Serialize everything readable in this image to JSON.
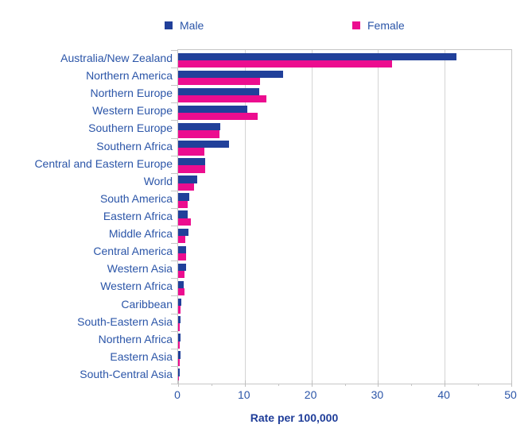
{
  "colors": {
    "male_bar": "#21409a",
    "female_bar": "#ec0d8f",
    "axis_text": "#2b55a8",
    "axis_title_text": "#1f3d99",
    "grid": "#d4d4d4",
    "border": "#c6c6c6"
  },
  "chart_data": {
    "type": "bar",
    "orientation": "horizontal",
    "title": "",
    "xlabel": "Rate per 100,000",
    "ylabel": "",
    "xlim": [
      0,
      50
    ],
    "xticks": [
      0,
      10,
      20,
      30,
      40,
      50
    ],
    "xticks_minor": [
      5,
      15,
      25,
      35,
      45
    ],
    "grid": true,
    "legend_position": "top",
    "categories": [
      "Australia/New Zealand",
      "Northern America",
      "Northern Europe",
      "Western Europe",
      "Southern Europe",
      "Southern Africa",
      "Central and Eastern Europe",
      "World",
      "South America",
      "Eastern Africa",
      "Middle Africa",
      "Central America",
      "Western Asia",
      "Western Africa",
      "Caribbean",
      "South-Eastern Asia",
      "Northern Africa",
      "Eastern Asia",
      "South-Central Asia"
    ],
    "series": [
      {
        "name": "Male",
        "color": "#21409a",
        "values": [
          41.8,
          15.7,
          12.2,
          10.4,
          6.3,
          7.6,
          4.1,
          2.9,
          1.7,
          1.4,
          1.5,
          1.2,
          1.2,
          0.8,
          0.5,
          0.4,
          0.3,
          0.3,
          0.2
        ]
      },
      {
        "name": "Female",
        "color": "#ec0d8f",
        "values": [
          32.1,
          12.3,
          13.3,
          11.9,
          6.2,
          3.9,
          4.1,
          2.4,
          1.4,
          1.9,
          1.1,
          1.2,
          0.9,
          0.9,
          0.3,
          0.2,
          0.2,
          0.2,
          0.1
        ]
      }
    ]
  }
}
